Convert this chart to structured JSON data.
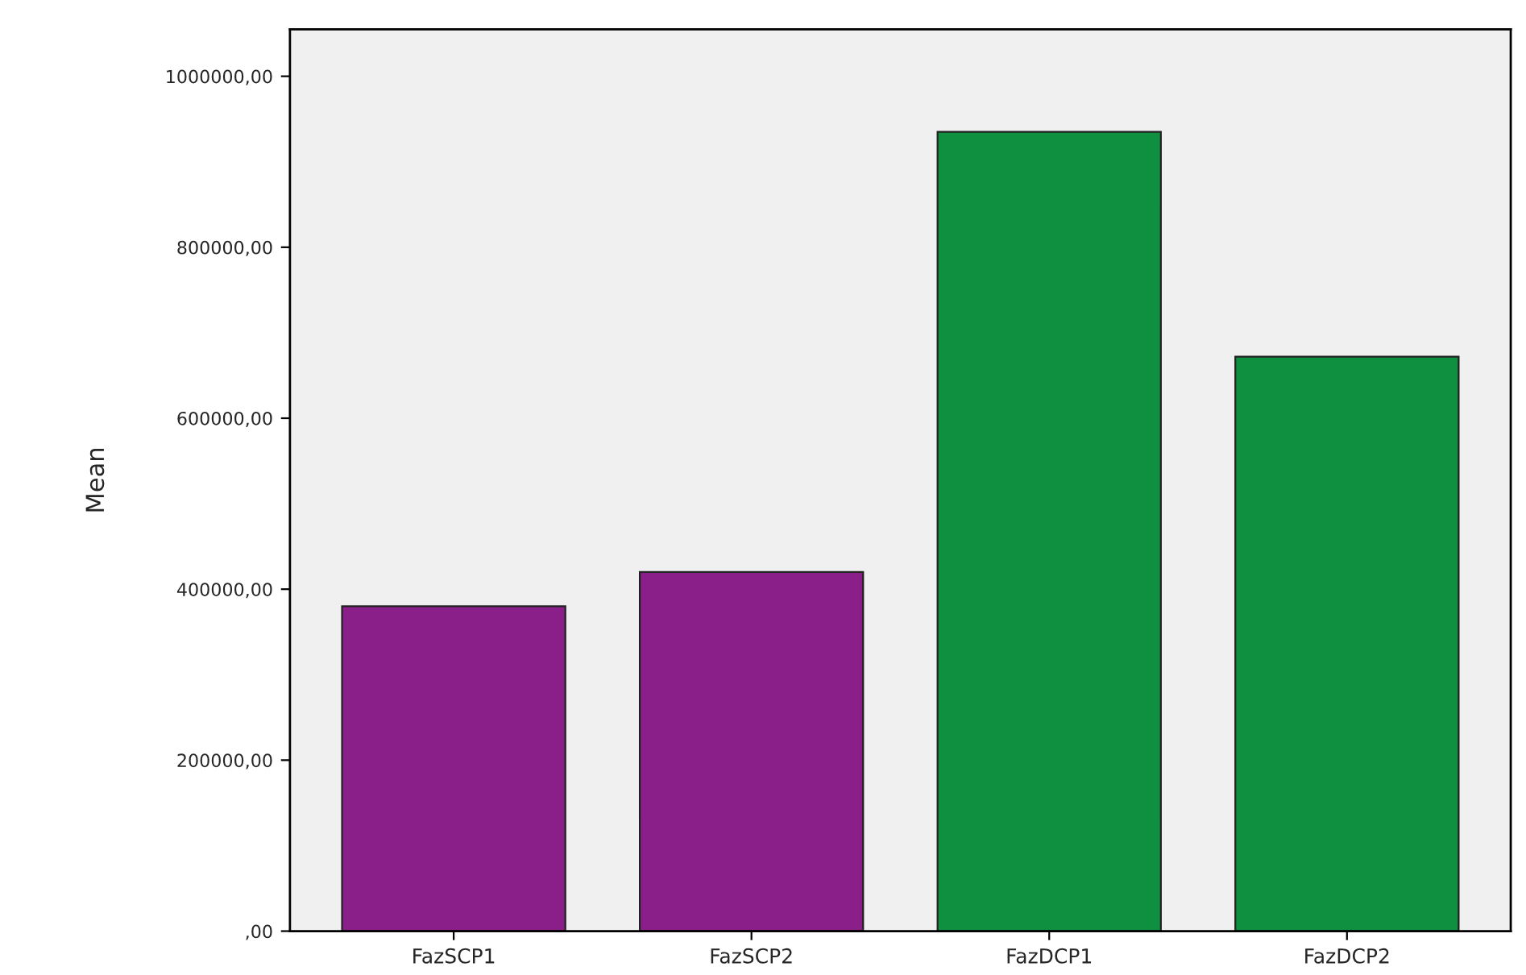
{
  "chart_data": {
    "type": "bar",
    "ylabel": "Mean",
    "categories": [
      "FazSCP1",
      "FazSCP2",
      "FazDCP1",
      "FazDCP2"
    ],
    "values": [
      380000,
      420000,
      935000,
      672000
    ],
    "colors": [
      "#8a1f8a",
      "#8a1f8a",
      "#0f8f40",
      "#0f8f40"
    ],
    "ylim": [
      0,
      1055000
    ],
    "yticks": [
      {
        "value": 0,
        "label": ",00"
      },
      {
        "value": 200000,
        "label": "200000,00"
      },
      {
        "value": 400000,
        "label": "400000,00"
      },
      {
        "value": 600000,
        "label": "600000,00"
      },
      {
        "value": 800000,
        "label": "800000,00"
      },
      {
        "value": 1000000,
        "label": "1000000,00"
      }
    ],
    "grid": false,
    "legend": false
  }
}
